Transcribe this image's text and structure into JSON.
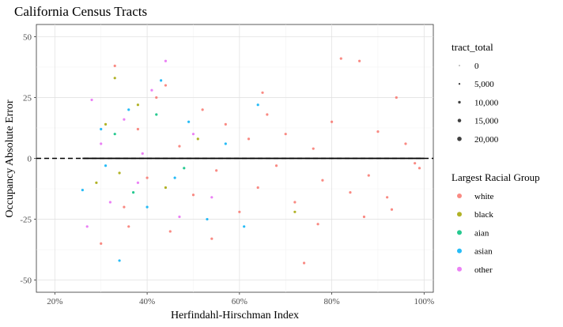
{
  "chart_data": {
    "type": "scatter",
    "title": "California Census Tracts",
    "xlabel": "Herfindahl-Hirschman Index",
    "ylabel": "Occupancy Absolute Error",
    "xlim": [
      0.16,
      1.02
    ],
    "ylim": [
      -55,
      55
    ],
    "x_ticks": [
      0.2,
      0.4,
      0.6,
      0.8,
      1.0
    ],
    "x_tick_labels": [
      "20%",
      "40%",
      "60%",
      "80%",
      "100%"
    ],
    "y_ticks": [
      -50,
      -25,
      0,
      25,
      50
    ],
    "y_tick_labels": [
      "-50",
      "-25",
      "0",
      "25",
      "50"
    ],
    "grid": true,
    "reference_line": {
      "y": 0,
      "style": "dashed"
    },
    "trend_line": {
      "x": [
        0.26,
        1.0
      ],
      "y": [
        0,
        0
      ],
      "style": "solid"
    },
    "colors": {
      "white": "#F8766D",
      "black": "#A3A500",
      "aian": "#00BF7D",
      "asian": "#00B0F6",
      "other": "#E76BF3"
    },
    "series": [
      {
        "name": "white",
        "points": [
          {
            "x": 0.3,
            "y": -35
          },
          {
            "x": 0.33,
            "y": 38
          },
          {
            "x": 0.35,
            "y": -20
          },
          {
            "x": 0.38,
            "y": 12
          },
          {
            "x": 0.4,
            "y": -8
          },
          {
            "x": 0.42,
            "y": 25
          },
          {
            "x": 0.45,
            "y": -30
          },
          {
            "x": 0.47,
            "y": 5
          },
          {
            "x": 0.5,
            "y": -15
          },
          {
            "x": 0.52,
            "y": 20
          },
          {
            "x": 0.55,
            "y": -5
          },
          {
            "x": 0.57,
            "y": 14
          },
          {
            "x": 0.6,
            "y": -22
          },
          {
            "x": 0.62,
            "y": 8
          },
          {
            "x": 0.64,
            "y": -12
          },
          {
            "x": 0.66,
            "y": 18
          },
          {
            "x": 0.68,
            "y": -3
          },
          {
            "x": 0.7,
            "y": 10
          },
          {
            "x": 0.72,
            "y": -18
          },
          {
            "x": 0.74,
            "y": -43
          },
          {
            "x": 0.76,
            "y": 4
          },
          {
            "x": 0.78,
            "y": -9
          },
          {
            "x": 0.8,
            "y": 15
          },
          {
            "x": 0.82,
            "y": 41
          },
          {
            "x": 0.84,
            "y": -14
          },
          {
            "x": 0.86,
            "y": 40
          },
          {
            "x": 0.88,
            "y": -7
          },
          {
            "x": 0.9,
            "y": 11
          },
          {
            "x": 0.92,
            "y": -16
          },
          {
            "x": 0.94,
            "y": 25
          },
          {
            "x": 0.96,
            "y": 6
          },
          {
            "x": 0.98,
            "y": -2
          },
          {
            "x": 0.99,
            "y": -4
          },
          {
            "x": 0.36,
            "y": -28
          },
          {
            "x": 0.44,
            "y": 30
          },
          {
            "x": 0.54,
            "y": -33
          },
          {
            "x": 0.65,
            "y": 27
          },
          {
            "x": 0.77,
            "y": -27
          },
          {
            "x": 0.87,
            "y": -24
          },
          {
            "x": 0.93,
            "y": -21
          }
        ]
      },
      {
        "name": "black",
        "points": [
          {
            "x": 0.31,
            "y": 14
          },
          {
            "x": 0.34,
            "y": -6
          },
          {
            "x": 0.38,
            "y": 22
          },
          {
            "x": 0.44,
            "y": -12
          },
          {
            "x": 0.51,
            "y": 8
          },
          {
            "x": 0.72,
            "y": -22
          },
          {
            "x": 0.33,
            "y": 33
          },
          {
            "x": 0.29,
            "y": -10
          }
        ]
      },
      {
        "name": "aian",
        "points": [
          {
            "x": 0.33,
            "y": 10
          },
          {
            "x": 0.37,
            "y": -14
          },
          {
            "x": 0.42,
            "y": 18
          },
          {
            "x": 0.48,
            "y": -4
          }
        ]
      },
      {
        "name": "asian",
        "points": [
          {
            "x": 0.26,
            "y": -13
          },
          {
            "x": 0.3,
            "y": 12
          },
          {
            "x": 0.34,
            "y": -42
          },
          {
            "x": 0.36,
            "y": 20
          },
          {
            "x": 0.4,
            "y": -20
          },
          {
            "x": 0.43,
            "y": 32
          },
          {
            "x": 0.46,
            "y": -8
          },
          {
            "x": 0.49,
            "y": 15
          },
          {
            "x": 0.53,
            "y": -25
          },
          {
            "x": 0.57,
            "y": 6
          },
          {
            "x": 0.61,
            "y": -28
          },
          {
            "x": 0.64,
            "y": 22
          },
          {
            "x": 0.31,
            "y": -3
          }
        ]
      },
      {
        "name": "other",
        "points": [
          {
            "x": 0.27,
            "y": -28
          },
          {
            "x": 0.28,
            "y": 24
          },
          {
            "x": 0.32,
            "y": -18
          },
          {
            "x": 0.35,
            "y": 16
          },
          {
            "x": 0.38,
            "y": -10
          },
          {
            "x": 0.41,
            "y": 28
          },
          {
            "x": 0.44,
            "y": 40
          },
          {
            "x": 0.47,
            "y": -24
          },
          {
            "x": 0.5,
            "y": 10
          },
          {
            "x": 0.54,
            "y": -16
          },
          {
            "x": 0.3,
            "y": 6
          },
          {
            "x": 0.39,
            "y": 2
          }
        ]
      }
    ],
    "legend_size": {
      "title": "tract_total",
      "labels": [
        "0",
        "5,000",
        "10,000",
        "15,000",
        "20,000"
      ],
      "values": [
        0,
        5000,
        10000,
        15000,
        20000
      ],
      "placement": "right"
    },
    "legend_color": {
      "title": "Largest Racial Group",
      "labels": [
        "white",
        "black",
        "aian",
        "asian",
        "other"
      ],
      "placement": "right"
    }
  }
}
